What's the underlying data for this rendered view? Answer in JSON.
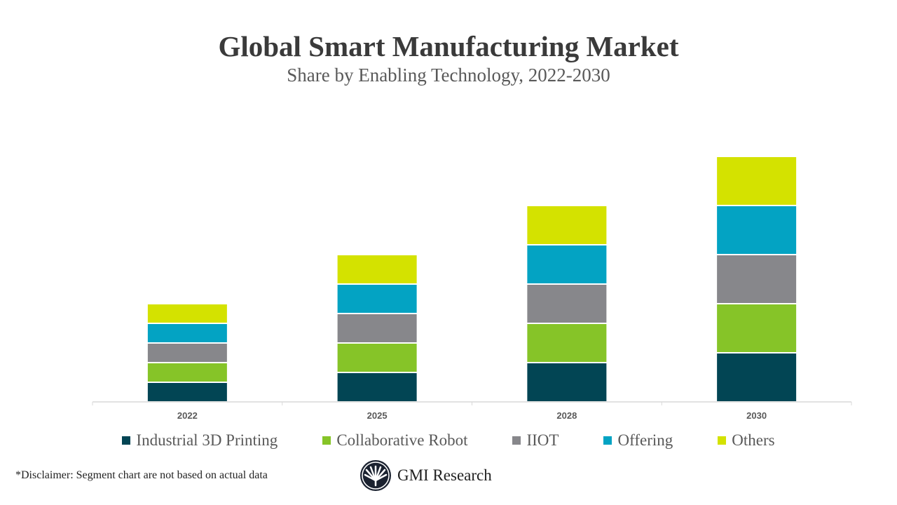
{
  "chart_data": {
    "type": "bar",
    "stacked": true,
    "title": "Global Smart Manufacturing Market",
    "subtitle": "Share by Enabling Technology, 2022-2030",
    "categories": [
      "2022",
      "2025",
      "2028",
      "2030"
    ],
    "series": [
      {
        "name": "Industrial 3D Printing",
        "color": "#024554",
        "values": [
          2,
          3,
          4,
          5
        ]
      },
      {
        "name": "Collaborative Robot",
        "color": "#86c428",
        "values": [
          2,
          3,
          4,
          5
        ]
      },
      {
        "name": "IIOT",
        "color": "#87878b",
        "values": [
          2,
          3,
          4,
          5
        ]
      },
      {
        "name": "Offering",
        "color": "#03a3c3",
        "values": [
          2,
          3,
          4,
          5
        ]
      },
      {
        "name": "Others",
        "color": "#d4e200",
        "values": [
          2,
          3,
          4,
          5
        ]
      }
    ],
    "ylim": [
      0,
      26
    ],
    "y_axis_shown": false,
    "grid": false,
    "legend_position": "bottom"
  },
  "footer": {
    "disclaimer": "*Disclaimer:   Segment chart are not based on actual data",
    "brand": "GMI Research"
  }
}
